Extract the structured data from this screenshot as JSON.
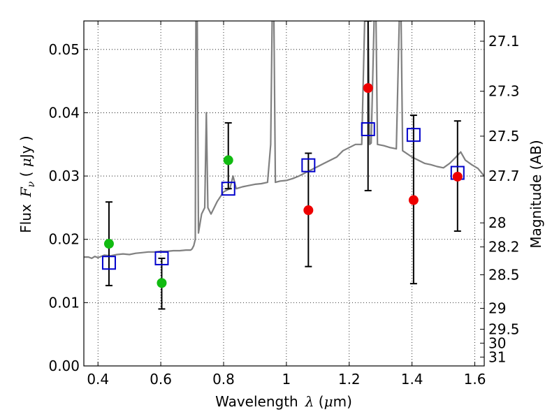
{
  "chart_data": {
    "type": "scatter",
    "title": "",
    "xlabel_text": "Wavelength",
    "xlabel_symbol": "λ",
    "xlabel_unit_open": " (",
    "xlabel_unit_symbol": "μ",
    "xlabel_unit_close": "m)",
    "ylabel_text": "Flux",
    "ylabel_symbol": "F",
    "ylabel_symbol_sub": "ν",
    "ylabel_unit_open": " ( ",
    "ylabel_unit_symbol": "μ",
    "ylabel_unit_close": "Jy )",
    "y2label": "Magnitude (AB)",
    "xlim": [
      0.355,
      1.63
    ],
    "ylim": [
      0.0,
      0.0545
    ],
    "grid": true,
    "legend": "none",
    "xticks": [
      0.4,
      0.6,
      0.8,
      1.0,
      1.2,
      1.4,
      1.6
    ],
    "xtick_labels": [
      "0.4",
      "0.6",
      "0.8",
      "1",
      "1.2",
      "1.4",
      "1.6"
    ],
    "yticks": [
      0.0,
      0.01,
      0.02,
      0.03,
      0.04,
      0.05
    ],
    "ytick_labels": [
      "0.00",
      "0.01",
      "0.02",
      "0.03",
      "0.04",
      "0.05"
    ],
    "y2ticks": [
      {
        "label": "27.1",
        "flux": 0.0513
      },
      {
        "label": "27.3",
        "flux": 0.0434
      },
      {
        "label": "27.5",
        "flux": 0.0363
      },
      {
        "label": "27.7",
        "flux": 0.03
      },
      {
        "label": "28",
        "flux": 0.0226
      },
      {
        "label": "28.2",
        "flux": 0.0188
      },
      {
        "label": "28.5",
        "flux": 0.0144
      },
      {
        "label": "29",
        "flux": 0.0091
      },
      {
        "label": "29.5",
        "flux": 0.0058
      },
      {
        "label": "30",
        "flux": 0.0036
      },
      {
        "label": "31",
        "flux": 0.0014
      }
    ],
    "series": [
      {
        "kind": "line",
        "color": "#808080",
        "points": [
          [
            0.355,
            0.0172
          ],
          [
            0.37,
            0.0172
          ],
          [
            0.38,
            0.017
          ],
          [
            0.39,
            0.0173
          ],
          [
            0.4,
            0.0171
          ],
          [
            0.42,
            0.0175
          ],
          [
            0.44,
            0.0174
          ],
          [
            0.46,
            0.0176
          ],
          [
            0.48,
            0.0177
          ],
          [
            0.5,
            0.0176
          ],
          [
            0.52,
            0.0178
          ],
          [
            0.54,
            0.0179
          ],
          [
            0.56,
            0.018
          ],
          [
            0.58,
            0.018
          ],
          [
            0.6,
            0.0181
          ],
          [
            0.62,
            0.0181
          ],
          [
            0.64,
            0.0182
          ],
          [
            0.66,
            0.0182
          ],
          [
            0.68,
            0.0183
          ],
          [
            0.695,
            0.0183
          ],
          [
            0.7,
            0.0185
          ],
          [
            0.705,
            0.019
          ],
          [
            0.71,
            0.02
          ],
          [
            0.712,
            0.056
          ],
          [
            0.716,
            0.056
          ],
          [
            0.72,
            0.021
          ],
          [
            0.73,
            0.024
          ],
          [
            0.74,
            0.025
          ],
          [
            0.745,
            0.04
          ],
          [
            0.75,
            0.025
          ],
          [
            0.76,
            0.024
          ],
          [
            0.78,
            0.026
          ],
          [
            0.8,
            0.0275
          ],
          [
            0.82,
            0.028
          ],
          [
            0.83,
            0.03
          ],
          [
            0.84,
            0.028
          ],
          [
            0.86,
            0.0283
          ],
          [
            0.88,
            0.0285
          ],
          [
            0.9,
            0.0287
          ],
          [
            0.92,
            0.0288
          ],
          [
            0.94,
            0.029
          ],
          [
            0.95,
            0.035
          ],
          [
            0.955,
            0.056
          ],
          [
            0.96,
            0.056
          ],
          [
            0.965,
            0.029
          ],
          [
            0.98,
            0.0292
          ],
          [
            1.0,
            0.0293
          ],
          [
            1.02,
            0.0296
          ],
          [
            1.04,
            0.03
          ],
          [
            1.06,
            0.0305
          ],
          [
            1.08,
            0.031
          ],
          [
            1.1,
            0.0315
          ],
          [
            1.12,
            0.032
          ],
          [
            1.14,
            0.0325
          ],
          [
            1.16,
            0.033
          ],
          [
            1.18,
            0.034
          ],
          [
            1.2,
            0.0345
          ],
          [
            1.22,
            0.035
          ],
          [
            1.24,
            0.035
          ],
          [
            1.25,
            0.056
          ],
          [
            1.26,
            0.056
          ],
          [
            1.265,
            0.035
          ],
          [
            1.27,
            0.0352
          ],
          [
            1.28,
            0.056
          ],
          [
            1.285,
            0.056
          ],
          [
            1.29,
            0.035
          ],
          [
            1.31,
            0.0348
          ],
          [
            1.33,
            0.0345
          ],
          [
            1.35,
            0.0343
          ],
          [
            1.36,
            0.056
          ],
          [
            1.365,
            0.056
          ],
          [
            1.37,
            0.034
          ],
          [
            1.4,
            0.033
          ],
          [
            1.42,
            0.0325
          ],
          [
            1.44,
            0.032
          ],
          [
            1.46,
            0.0318
          ],
          [
            1.48,
            0.0315
          ],
          [
            1.5,
            0.0313
          ],
          [
            1.52,
            0.032
          ],
          [
            1.54,
            0.033
          ],
          [
            1.555,
            0.0338
          ],
          [
            1.57,
            0.0325
          ],
          [
            1.59,
            0.0318
          ],
          [
            1.61,
            0.0312
          ],
          [
            1.63,
            0.03
          ]
        ]
      },
      {
        "kind": "open-square",
        "color": "#0000cc",
        "points": [
          [
            0.435,
            0.0163
          ],
          [
            0.603,
            0.017
          ],
          [
            0.815,
            0.028
          ],
          [
            1.07,
            0.0317
          ],
          [
            1.26,
            0.0374
          ],
          [
            1.405,
            0.0365
          ],
          [
            1.545,
            0.0305
          ]
        ]
      },
      {
        "kind": "green-dot",
        "color": "#11bb11",
        "points": [
          [
            0.435,
            0.0193
          ],
          [
            0.603,
            0.0131
          ],
          [
            0.815,
            0.0325
          ]
        ]
      },
      {
        "kind": "red-dot",
        "color": "#ee0000",
        "points": [
          [
            1.07,
            0.0246
          ],
          [
            1.26,
            0.0439
          ],
          [
            1.405,
            0.0262
          ],
          [
            1.545,
            0.0299
          ]
        ]
      }
    ],
    "errorbars": [
      {
        "x": 0.435,
        "low": 0.0127,
        "high": 0.0259
      },
      {
        "x": 0.603,
        "low": 0.009,
        "high": 0.017
      },
      {
        "x": 0.815,
        "low": 0.028,
        "high": 0.0384
      },
      {
        "x": 1.07,
        "low": 0.0157,
        "high": 0.0336
      },
      {
        "x": 1.26,
        "low": 0.0277,
        "high": 0.0545
      },
      {
        "x": 1.405,
        "low": 0.013,
        "high": 0.0396
      },
      {
        "x": 1.545,
        "low": 0.0213,
        "high": 0.0387
      }
    ]
  }
}
